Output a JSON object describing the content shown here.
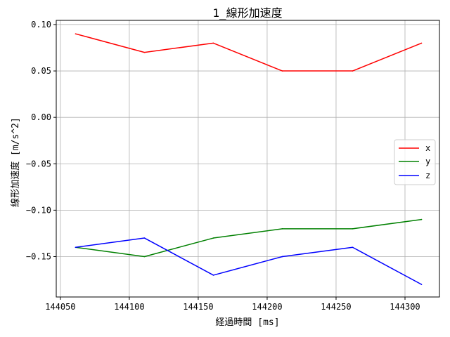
{
  "chart_data": {
    "type": "line",
    "title": "1_線形加速度",
    "xlabel": "経過時間 [ms]",
    "ylabel": "線形加速度 [m/s^2]",
    "x": [
      144061,
      144111,
      144161,
      144211,
      144262,
      144312
    ],
    "xlim": [
      144047,
      144325
    ],
    "ylim": [
      -0.1935,
      0.1045
    ],
    "xticks": [
      144050,
      144100,
      144150,
      144200,
      144250,
      144300
    ],
    "xtick_labels": [
      "144050",
      "144100",
      "144150",
      "144200",
      "144250",
      "144300"
    ],
    "yticks": [
      0.1,
      0.05,
      0.0,
      -0.05,
      -0.1,
      -0.15
    ],
    "ytick_labels": [
      "0.10",
      "0.05",
      "0.00",
      "−0.05",
      "−0.10",
      "−0.15"
    ],
    "grid": true,
    "legend_position": "center-right",
    "series": [
      {
        "name": "x",
        "color": "#ff0000",
        "values": [
          0.09,
          0.07,
          0.08,
          0.05,
          0.05,
          0.08
        ]
      },
      {
        "name": "y",
        "color": "#008000",
        "values": [
          -0.14,
          -0.15,
          -0.13,
          -0.12,
          -0.12,
          -0.11
        ]
      },
      {
        "name": "z",
        "color": "#0000ff",
        "values": [
          -0.14,
          -0.13,
          -0.17,
          -0.15,
          -0.14,
          -0.18
        ]
      }
    ]
  }
}
